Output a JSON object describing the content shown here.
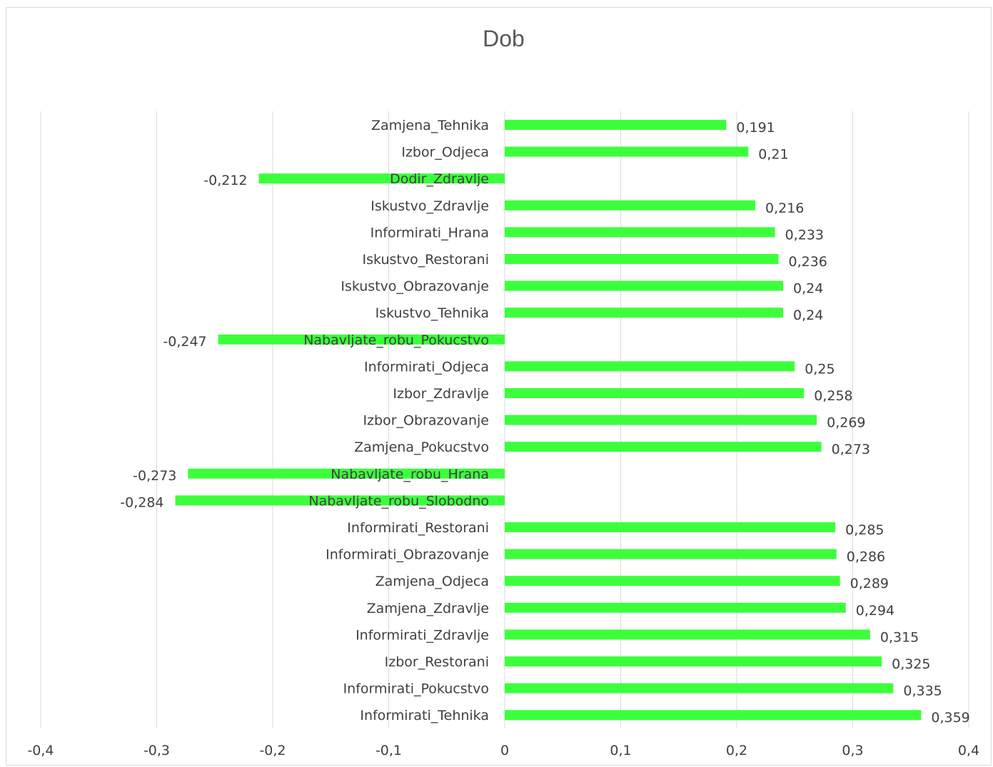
{
  "chart_data": {
    "type": "bar",
    "orientation": "horizontal",
    "title": "Dob",
    "xlim": [
      -0.4,
      0.4
    ],
    "x_ticks": [
      "-0,4",
      "-0,3",
      "-0,2",
      "-0,1",
      "0",
      "0,1",
      "0,2",
      "0,3",
      "0,4"
    ],
    "grid": true,
    "legend": "none",
    "bar_color": "#3cff3c",
    "categories": [
      "Zamjena_Tehnika",
      "Izbor_Odjeca",
      "Dodir_Zdravlje",
      "Iskustvo_Zdravlje",
      "Informirati_Hrana",
      "Iskustvo_Restorani",
      "Iskustvo_Obrazovanje",
      "Iskustvo_Tehnika",
      "Nabavljate_robu_Pokucstvo",
      "Informirati_Odjeca",
      "Izbor_Zdravlje",
      "Izbor_Obrazovanje",
      "Zamjena_Pokucstvo",
      "Nabavljate_robu_Hrana",
      "Nabavljate_robu_Slobodno",
      "Informirati_Restorani",
      "Informirati_Obrazovanje",
      "Zamjena_Odjeca",
      "Zamjena_Zdravlje",
      "Informirati_Zdravlje",
      "Izbor_Restorani",
      "Informirati_Pokucstvo",
      "Informirati_Tehnika"
    ],
    "values": [
      0.191,
      0.21,
      -0.212,
      0.216,
      0.233,
      0.236,
      0.24,
      0.24,
      -0.247,
      0.25,
      0.258,
      0.269,
      0.273,
      -0.273,
      -0.284,
      0.285,
      0.286,
      0.289,
      0.294,
      0.315,
      0.325,
      0.335,
      0.359
    ],
    "value_labels": [
      "0,191",
      "0,21",
      "-0,212",
      "0,216",
      "0,233",
      "0,236",
      "0,24",
      "0,24",
      "-0,247",
      "0,25",
      "0,258",
      "0,269",
      "0,273",
      "-0,273",
      "-0,284",
      "0,285",
      "0,286",
      "0,289",
      "0,294",
      "0,315",
      "0,325",
      "0,335",
      "0,359"
    ]
  }
}
